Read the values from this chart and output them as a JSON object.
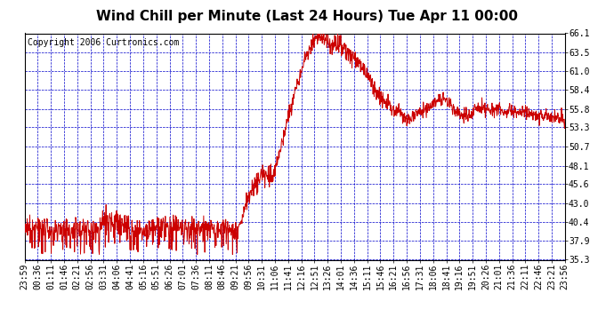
{
  "title": "Wind Chill per Minute (Last 24 Hours) Tue Apr 11 00:00",
  "copyright": "Copyright 2006 Curtronics.com",
  "background_color": "#ffffff",
  "plot_bg_color": "#ffffff",
  "line_color": "#cc0000",
  "grid_color": "#0000cc",
  "border_color": "#000000",
  "ytick_labels": [
    "35.3",
    "37.9",
    "40.4",
    "43.0",
    "45.6",
    "48.1",
    "50.7",
    "53.3",
    "55.8",
    "58.4",
    "61.0",
    "63.5",
    "66.1"
  ],
  "ytick_values": [
    35.3,
    37.9,
    40.4,
    43.0,
    45.6,
    48.1,
    50.7,
    53.3,
    55.8,
    58.4,
    61.0,
    63.5,
    66.1
  ],
  "ymin": 35.3,
  "ymax": 66.1,
  "xtick_labels": [
    "23:59",
    "00:36",
    "01:11",
    "01:46",
    "02:21",
    "02:56",
    "03:31",
    "04:06",
    "04:41",
    "05:16",
    "05:51",
    "06:26",
    "07:01",
    "07:36",
    "08:11",
    "08:46",
    "09:21",
    "09:56",
    "10:31",
    "11:06",
    "11:41",
    "12:16",
    "12:51",
    "13:26",
    "14:01",
    "14:36",
    "15:11",
    "15:46",
    "16:21",
    "16:56",
    "17:31",
    "18:06",
    "18:41",
    "19:16",
    "19:51",
    "20:26",
    "21:01",
    "21:36",
    "22:11",
    "22:46",
    "23:21",
    "23:56"
  ],
  "title_fontsize": 11,
  "tick_fontsize": 7,
  "copyright_fontsize": 7
}
